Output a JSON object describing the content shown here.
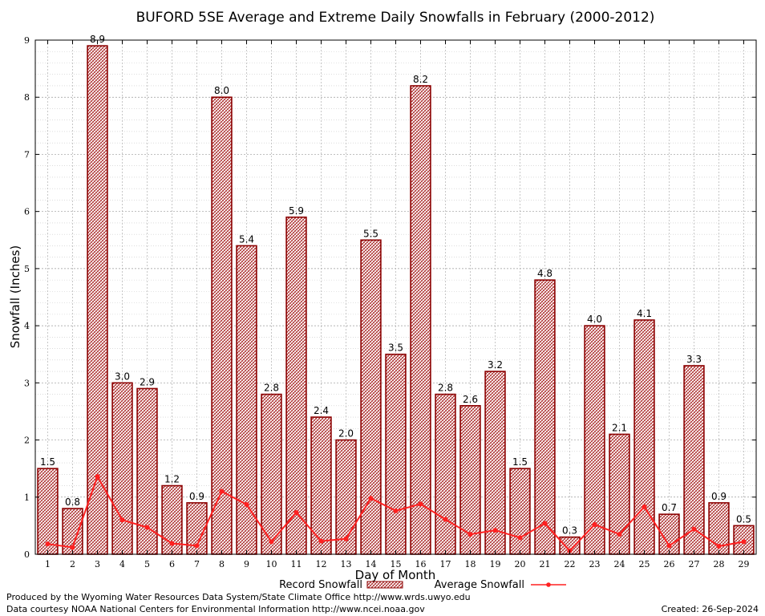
{
  "chart_data": {
    "type": "bar",
    "title": "BUFORD 5SE Average and Extreme Daily Snowfalls in February (2000-2012)",
    "xlabel": "Day of Month",
    "ylabel": "Snowfall (Inches)",
    "ylim": [
      0,
      9
    ],
    "yticks": [
      "0",
      "1",
      "2",
      "3",
      "4",
      "5",
      "6",
      "7",
      "8",
      "9"
    ],
    "grid": true,
    "legend_position": "bottom",
    "categories": [
      "1",
      "2",
      "3",
      "4",
      "5",
      "6",
      "7",
      "8",
      "9",
      "10",
      "11",
      "12",
      "13",
      "14",
      "15",
      "16",
      "17",
      "18",
      "19",
      "20",
      "21",
      "22",
      "23",
      "24",
      "25",
      "26",
      "27",
      "28",
      "29"
    ],
    "series": [
      {
        "name": "Record Snowfall",
        "type": "bar",
        "color": "#8b0000",
        "values": [
          1.5,
          0.8,
          8.9,
          3.0,
          2.9,
          1.2,
          0.9,
          8.0,
          5.4,
          2.8,
          5.9,
          2.4,
          2.0,
          5.5,
          3.5,
          8.2,
          2.8,
          2.6,
          3.2,
          1.5,
          4.8,
          0.3,
          4.0,
          2.1,
          4.1,
          0.7,
          3.3,
          0.9,
          0.5
        ],
        "labels": [
          "1.5",
          "0.8",
          "8.9",
          "3.0",
          "2.9",
          "1.2",
          "0.9",
          "8.0",
          "5.4",
          "2.8",
          "5.9",
          "2.4",
          "2.0",
          "5.5",
          "3.5",
          "8.2",
          "2.8",
          "2.6",
          "3.2",
          "1.5",
          "4.8",
          "0.3",
          "4.0",
          "2.1",
          "4.1",
          "0.7",
          "3.3",
          "0.9",
          "0.5"
        ]
      },
      {
        "name": "Average Snowfall",
        "type": "line",
        "color": "#ff2020",
        "values": [
          0.18,
          0.12,
          1.36,
          0.6,
          0.47,
          0.19,
          0.15,
          1.1,
          0.87,
          0.22,
          0.73,
          0.23,
          0.27,
          0.98,
          0.76,
          0.88,
          0.61,
          0.35,
          0.42,
          0.29,
          0.54,
          0.06,
          0.52,
          0.35,
          0.83,
          0.15,
          0.44,
          0.14,
          0.22
        ]
      }
    ]
  },
  "footer": {
    "produced_by": "Produced by the Wyoming Water Resources Data System/State Climate Office http://www.wrds.uwyo.edu",
    "courtesy": "Data courtesy NOAA National Centers for Environmental Information http://www.ncei.noaa.gov",
    "created": "Created: 26-Sep-2024"
  }
}
